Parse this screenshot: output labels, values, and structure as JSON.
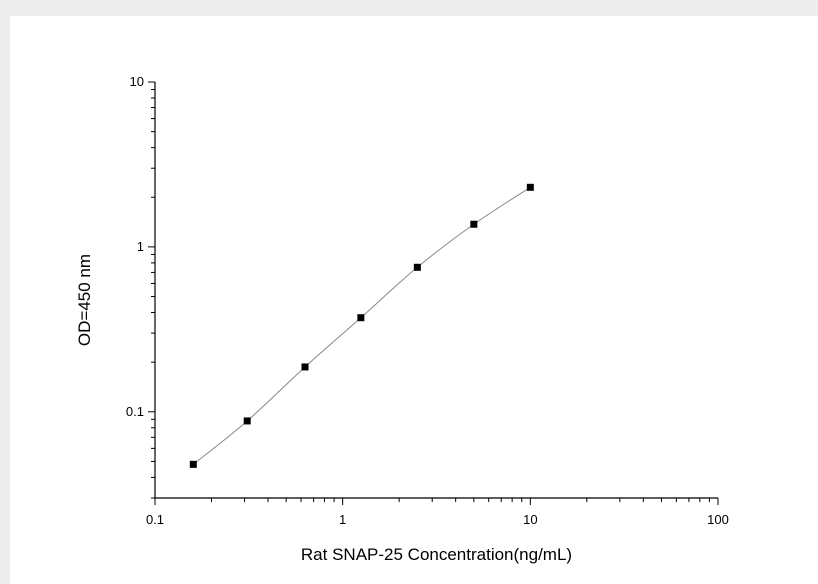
{
  "chart_data": {
    "type": "scatter",
    "xlabel": "Rat SNAP-25 Concentration(ng/mL)",
    "ylabel": "OD=450 nm",
    "x_scale": "log",
    "y_scale": "log",
    "xlim": [
      0.1,
      100
    ],
    "ylim": [
      0.03,
      10
    ],
    "x_ticks": [
      {
        "value": 0.1,
        "label": "0.1"
      },
      {
        "value": 1,
        "label": "1"
      },
      {
        "value": 10,
        "label": "10"
      },
      {
        "value": 100,
        "label": "100"
      }
    ],
    "y_ticks": [
      {
        "value": 0.1,
        "label": "0.1"
      },
      {
        "value": 1,
        "label": "1"
      },
      {
        "value": 10,
        "label": "10"
      }
    ],
    "grid": false,
    "series": [
      {
        "x": [
          0.16,
          0.31,
          0.63,
          1.25,
          2.5,
          5,
          10
        ],
        "y": [
          0.048,
          0.088,
          0.187,
          0.372,
          0.752,
          1.372,
          2.298
        ]
      }
    ],
    "marker_color": "#000000",
    "line_color": "#888888"
  }
}
